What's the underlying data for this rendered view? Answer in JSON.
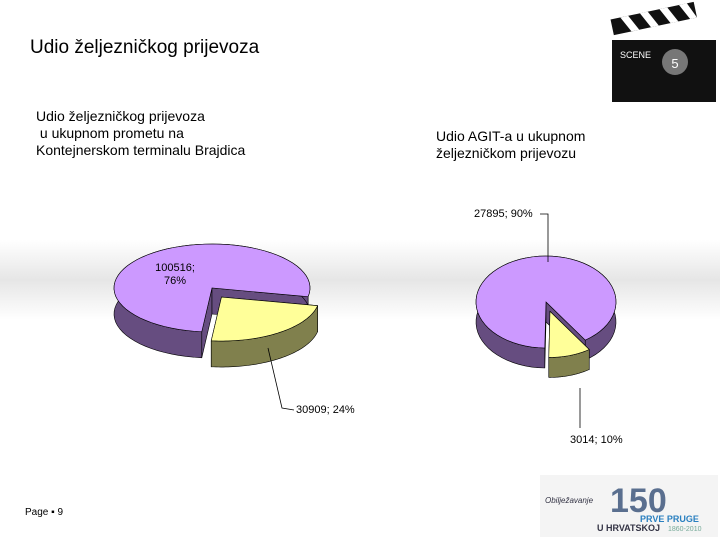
{
  "header": {
    "title": "Udio željezničkog prijevoza"
  },
  "footer": {
    "page": "Page ▪ 9"
  },
  "clapper": {
    "scene": "SCENE",
    "number": "5"
  },
  "logo": {
    "number": "150",
    "line1": "Obilježavanje",
    "line2": "PRVE PRUGE",
    "line3": "U HRVATSKOJ",
    "years": "1860-2010"
  },
  "chart_data": [
    {
      "type": "pie",
      "title": [
        "Udio željezničkog prijevoza",
        " u ukupnom prometu na",
        "Kontejnerskom terminalu Brajdica"
      ],
      "values": [
        100516,
        30909
      ],
      "value_labels": [
        "100516; 76%",
        "30909; 24%"
      ],
      "colors": [
        "#cc99ff",
        "#ffff99"
      ],
      "explode": [
        false,
        true
      ]
    },
    {
      "type": "pie",
      "title": [
        "Udio AGIT-a u ukupnom",
        "željezničkom prijevozu"
      ],
      "values": [
        27895,
        3014
      ],
      "value_labels": [
        "27895; 90%",
        "3014; 10%"
      ],
      "colors": [
        "#cc99ff",
        "#ffff99"
      ],
      "explode": [
        false,
        true
      ]
    }
  ]
}
